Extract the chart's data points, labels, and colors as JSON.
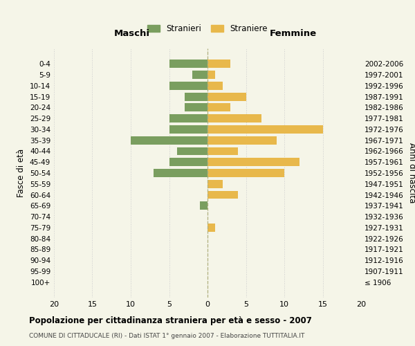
{
  "age_groups": [
    "0-4",
    "5-9",
    "10-14",
    "15-19",
    "20-24",
    "25-29",
    "30-34",
    "35-39",
    "40-44",
    "45-49",
    "50-54",
    "55-59",
    "60-64",
    "65-69",
    "70-74",
    "75-79",
    "80-84",
    "85-89",
    "90-94",
    "95-99",
    "100+"
  ],
  "birth_years": [
    "2002-2006",
    "1997-2001",
    "1992-1996",
    "1987-1991",
    "1982-1986",
    "1977-1981",
    "1972-1976",
    "1967-1971",
    "1962-1966",
    "1957-1961",
    "1952-1956",
    "1947-1951",
    "1942-1946",
    "1937-1941",
    "1932-1936",
    "1927-1931",
    "1922-1926",
    "1917-1921",
    "1912-1916",
    "1907-1911",
    "≤ 1906"
  ],
  "maschi": [
    5,
    2,
    5,
    3,
    3,
    5,
    5,
    10,
    4,
    5,
    7,
    0,
    0,
    1,
    0,
    0,
    0,
    0,
    0,
    0,
    0
  ],
  "femmine": [
    3,
    1,
    2,
    5,
    3,
    7,
    15,
    9,
    4,
    12,
    10,
    2,
    4,
    0,
    0,
    1,
    0,
    0,
    0,
    0,
    0
  ],
  "maschi_color": "#7a9e5f",
  "femmine_color": "#e8b84b",
  "background_color": "#f5f5e8",
  "grid_color": "#cccccc",
  "title": "Popolazione per cittadinanza straniera per età e sesso - 2007",
  "subtitle": "COMUNE DI CITTADUCALE (RI) - Dati ISTAT 1° gennaio 2007 - Elaborazione TUTTITALIA.IT",
  "xlabel_left": "Maschi",
  "xlabel_right": "Femmine",
  "ylabel_left": "Fasce di età",
  "ylabel_right": "Anni di nascita",
  "legend_maschi": "Stranieri",
  "legend_femmine": "Straniere",
  "xlim": 20,
  "bar_height": 0.75
}
